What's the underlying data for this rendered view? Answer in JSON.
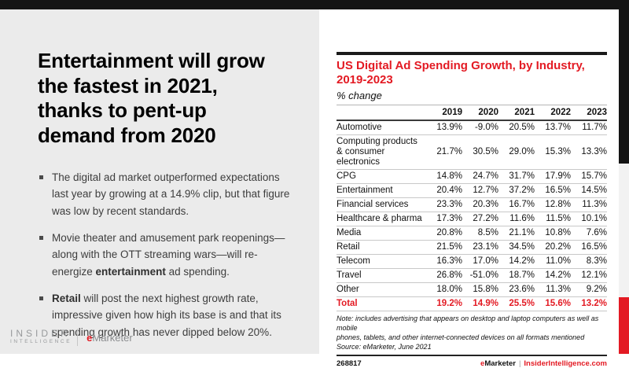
{
  "colors": {
    "accent_red": "#e31a23",
    "bar_black": "#141414",
    "panel_gray": "#ebebeb",
    "strip_gray": "#f2f2f2"
  },
  "left_panel": {
    "headline": "Entertainment will grow\nthe fastest in 2021,\nthanks to pent-up\ndemand from 2020",
    "bullets": [
      {
        "segments": [
          {
            "t": "The digital ad market outperformed expectations last year by growing at a 14.9% clip, but that figure was low by recent standards.",
            "b": false
          }
        ]
      },
      {
        "segments": [
          {
            "t": "Movie theater and amusement park reopenings—along with the OTT streaming wars—will re-energize ",
            "b": false
          },
          {
            "t": "entertainment",
            "b": true
          },
          {
            "t": " ad spending.",
            "b": false
          }
        ]
      },
      {
        "segments": [
          {
            "t": "Retail",
            "b": true
          },
          {
            "t": " will post the next highest growth rate, impressive given how high its base is and that its spending growth has never dipped below 20%.",
            "b": false
          }
        ]
      }
    ]
  },
  "logo": {
    "line1": "INSIDER",
    "line2": "INTELLIGENCE",
    "brand_e": "e",
    "brand_rest": "Marketer"
  },
  "chart": {
    "title_display": "US Digital Ad Spending Growth, by Industry,\n2019-2023",
    "subtitle": "% change",
    "note": "Note: includes advertising that appears on desktop and laptop computers as well as mobile\nphones, tablets, and other internet-connected devices on all formats mentioned",
    "source": "Source: eMarketer, June 2021",
    "chart_id": "268817",
    "footer_brand_e": "e",
    "footer_brand_rest": "Marketer",
    "footer_separator": "|",
    "footer_site": "InsiderIntelligence.com"
  },
  "chart_data": {
    "type": "table",
    "title": "US Digital Ad Spending Growth, by Industry, 2019-2023",
    "subtitle": "% change",
    "unit": "percent change year over year",
    "columns": [
      "2019",
      "2020",
      "2021",
      "2022",
      "2023"
    ],
    "rows": [
      {
        "label": "Automotive",
        "values": [
          13.9,
          -9.0,
          20.5,
          13.7,
          11.7
        ]
      },
      {
        "label": "Computing products & consumer electronics",
        "values": [
          21.7,
          30.5,
          29.0,
          15.3,
          13.3
        ]
      },
      {
        "label": "CPG",
        "values": [
          14.8,
          24.7,
          31.7,
          17.9,
          15.7
        ]
      },
      {
        "label": "Entertainment",
        "values": [
          20.4,
          12.7,
          37.2,
          16.5,
          14.5
        ]
      },
      {
        "label": "Financial services",
        "values": [
          23.3,
          20.3,
          16.7,
          12.8,
          11.3
        ]
      },
      {
        "label": "Healthcare & pharma",
        "values": [
          17.3,
          27.2,
          11.6,
          11.5,
          10.1
        ]
      },
      {
        "label": "Media",
        "values": [
          20.8,
          8.5,
          21.1,
          10.8,
          7.6
        ]
      },
      {
        "label": "Retail",
        "values": [
          21.5,
          23.1,
          34.5,
          20.2,
          16.5
        ]
      },
      {
        "label": "Telecom",
        "values": [
          16.3,
          17.0,
          14.2,
          11.0,
          8.3
        ]
      },
      {
        "label": "Travel",
        "values": [
          26.8,
          -51.0,
          18.7,
          14.2,
          12.1
        ]
      },
      {
        "label": "Other",
        "values": [
          18.0,
          15.8,
          23.6,
          11.3,
          9.2
        ]
      }
    ],
    "total": {
      "label": "Total",
      "values": [
        19.2,
        14.9,
        25.5,
        15.6,
        13.2
      ]
    }
  }
}
